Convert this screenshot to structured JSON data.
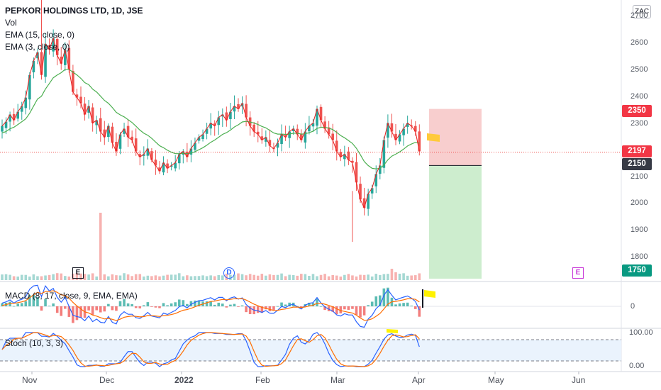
{
  "chart_data": {
    "type": "candlestick",
    "title": "PEPKOR HOLDINGS LTD, 1D, JSE",
    "currency": "ZAC",
    "indicators": [
      "Vol",
      "EMA (15, close, 0)",
      "EMA (3, close, 0)"
    ],
    "x_ticks": [
      "Nov",
      "Dec",
      "2022",
      "Feb",
      "Mar",
      "Apr",
      "May",
      "Jun"
    ],
    "y_ticks": [
      1800,
      1900,
      2000,
      2100,
      2200,
      2300,
      2400,
      2500,
      2600,
      2700
    ],
    "ylim": [
      1745,
      2735
    ],
    "closes": [
      2290,
      2305,
      2330,
      2310,
      2340,
      2360,
      2390,
      2470,
      2520,
      2550,
      2470,
      2580,
      2560,
      2600,
      2540,
      2510,
      2560,
      2490,
      2410,
      2390,
      2370,
      2330,
      2360,
      2300,
      2310,
      2270,
      2250,
      2290,
      2230,
      2200,
      2260,
      2280,
      2250,
      2240,
      2200,
      2180,
      2190,
      2210,
      2170,
      2150,
      2130,
      2160,
      2140,
      2150,
      2160,
      2190,
      2200,
      2180,
      2210,
      2230,
      2250,
      2260,
      2280,
      2300,
      2290,
      2320,
      2330,
      2310,
      2340,
      2360,
      2350,
      2370,
      2320,
      2290,
      2270,
      2260,
      2240,
      2250,
      2220,
      2210,
      2230,
      2260,
      2250,
      2270,
      2280,
      2260,
      2240,
      2270,
      2290,
      2300,
      2350,
      2310,
      2280,
      2260,
      2240,
      2200,
      2180,
      2190,
      2170,
      2160,
      2090,
      2030,
      2000,
      2050,
      2070,
      2120,
      2150,
      2240,
      2300,
      2270,
      2240,
      2260,
      2280,
      2300,
      2290,
      2270,
      2200
    ],
    "ema15": [
      2265,
      2270,
      2280,
      2285,
      2295,
      2305,
      2315,
      2335,
      2360,
      2385,
      2395,
      2420,
      2440,
      2460,
      2470,
      2478,
      2490,
      2490,
      2480,
      2470,
      2458,
      2443,
      2436,
      2420,
      2410,
      2395,
      2380,
      2370,
      2355,
      2338,
      2329,
      2322,
      2312,
      2302,
      2289,
      2275,
      2264,
      2257,
      2246,
      2233,
      2220,
      2213,
      2204,
      2197,
      2192,
      2192,
      2193,
      2192,
      2194,
      2199,
      2206,
      2213,
      2222,
      2232,
      2240,
      2250,
      2260,
      2266,
      2275,
      2286,
      2294,
      2304,
      2306,
      2304,
      2300,
      2295,
      2288,
      2283,
      2274,
      2265,
      2261,
      2261,
      2260,
      2261,
      2264,
      2264,
      2261,
      2262,
      2266,
      2271,
      2281,
      2285,
      2285,
      2282,
      2277,
      2267,
      2256,
      2248,
      2238,
      2228,
      2211,
      2188,
      2164,
      2150,
      2140,
      2138,
      2140,
      2152,
      2170,
      2183,
      2190,
      2198,
      2208,
      2219,
      2226,
      2232,
      2229
    ],
    "current_price_label": "2197",
    "position_tool": {
      "stop_label": "2350",
      "entry_label": "2150",
      "target_label": "1750"
    },
    "volume_tag": "E",
    "event_markers": [
      "E",
      "D",
      "E"
    ],
    "macd": {
      "label": "MACD (8, 17, close, 9, EMA, EMA)",
      "zero_label": "0"
    },
    "stoch": {
      "label": "Stoch (10, 3, 3)",
      "upper_label": "100.00",
      "lower_label": "0.00"
    }
  },
  "colors": {
    "up": "#26a69a",
    "down": "#ef5350",
    "ema_slow": "#4caf50",
    "ema_fast": "#e91e1e",
    "macd": "#2962ff",
    "signal": "#ff6d00"
  }
}
